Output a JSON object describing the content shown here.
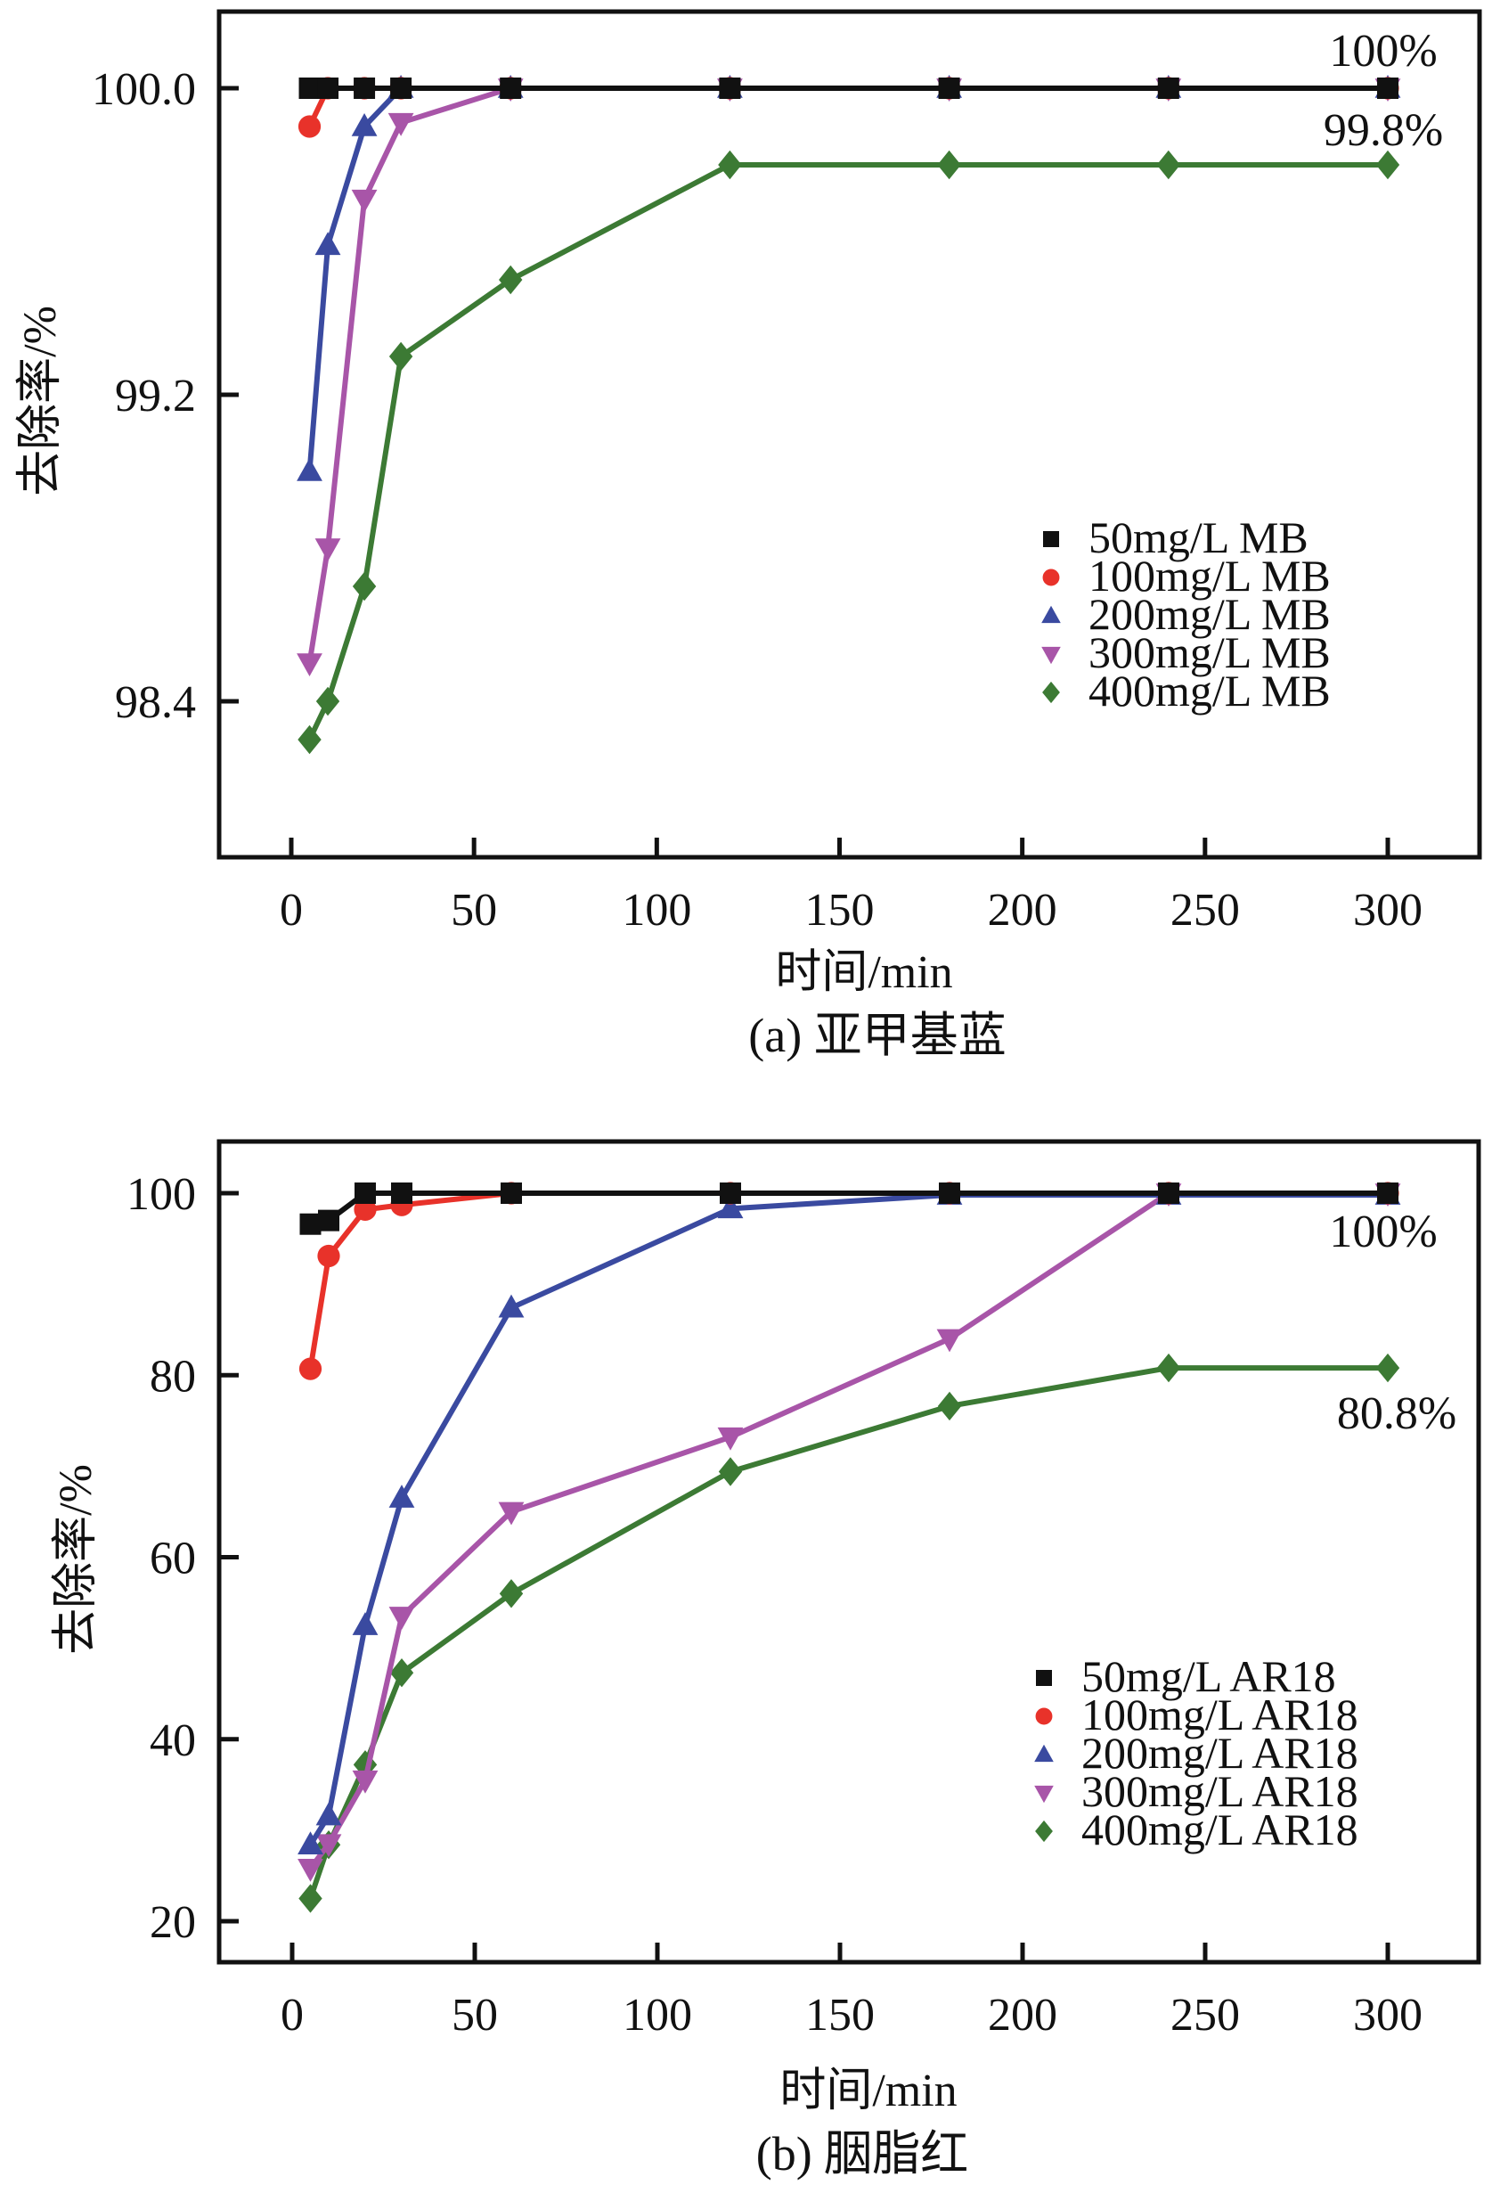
{
  "chart_data": [
    {
      "type": "line",
      "panel": "a",
      "caption": "(a) 亚甲基蓝",
      "title": "",
      "xlabel": "时间/min",
      "ylabel": "去除率/%",
      "xlim": [
        -19,
        326
      ],
      "ylim": [
        98.02,
        100.23
      ],
      "xticks": [
        0,
        50,
        100,
        150,
        200,
        250,
        300
      ],
      "xtick_labels": [
        "0",
        "50",
        "100",
        "150",
        "200",
        "250",
        "300"
      ],
      "yticks": [
        98.4,
        99.2,
        100.0
      ],
      "ytick_labels": [
        "98.4",
        "99.2",
        "100.0"
      ],
      "grid": false,
      "legend_position": "bottom-right",
      "x": [
        5,
        10,
        20,
        30,
        60,
        120,
        180,
        240,
        300
      ],
      "series": [
        {
          "name": "50mg/L MB",
          "color": "#111111",
          "marker": "square",
          "values": [
            100.0,
            100.0,
            100.0,
            100.0,
            100.0,
            100.0,
            100.0,
            100.0,
            100.0
          ]
        },
        {
          "name": "100mg/L MB",
          "color": "#e8322a",
          "marker": "circle",
          "values": [
            99.9,
            100.0,
            100.0,
            100.0,
            100.0,
            100.0,
            100.0,
            100.0,
            100.0
          ]
        },
        {
          "name": "200mg/L MB",
          "color": "#3a4aa0",
          "marker": "triangle-up",
          "values": [
            99.0,
            99.59,
            99.9,
            100.0,
            100.0,
            100.0,
            100.0,
            100.0,
            100.0
          ]
        },
        {
          "name": "300mg/L MB",
          "color": "#a855a8",
          "marker": "triangle-down",
          "values": [
            98.5,
            98.8,
            99.71,
            99.91,
            100.0,
            100.0,
            100.0,
            100.0,
            100.0
          ]
        },
        {
          "name": "400mg/L MB",
          "color": "#3c7a34",
          "marker": "diamond",
          "values": [
            98.3,
            98.4,
            98.7,
            99.3,
            99.5,
            99.8,
            99.8,
            99.8,
            99.8
          ]
        }
      ],
      "annotations": [
        {
          "text": "100%",
          "x": 300,
          "y": 100.0,
          "position": "above"
        },
        {
          "text": "99.8%",
          "x": 300,
          "y": 99.8,
          "position": "above"
        }
      ]
    },
    {
      "type": "line",
      "panel": "b",
      "caption": "(b) 胭脂红",
      "title": "",
      "xlabel": "时间/min",
      "ylabel": "去除率/%",
      "xlim": [
        -19,
        325
      ],
      "ylim": [
        15.5,
        105.7
      ],
      "xticks": [
        0,
        50,
        100,
        150,
        200,
        250,
        300
      ],
      "xtick_labels": [
        "0",
        "50",
        "100",
        "150",
        "200",
        "250",
        "300"
      ],
      "yticks": [
        20,
        40,
        60,
        80,
        100
      ],
      "ytick_labels": [
        "20",
        "40",
        "60",
        "80",
        "100"
      ],
      "grid": false,
      "legend_position": "bottom-right",
      "x": [
        5,
        10,
        20,
        30,
        60,
        120,
        180,
        240,
        300
      ],
      "series": [
        {
          "name": "50mg/L AR18",
          "color": "#111111",
          "marker": "square",
          "values": [
            96.6,
            97.0,
            100.0,
            100.0,
            100.0,
            100.0,
            100.0,
            100.0,
            100.0
          ]
        },
        {
          "name": "100mg/L AR18",
          "color": "#e8322a",
          "marker": "circle",
          "values": [
            80.7,
            93.1,
            98.2,
            98.7,
            100.0,
            100.0,
            100.0,
            100.0,
            100.0
          ]
        },
        {
          "name": "200mg/L AR18",
          "color": "#3a4aa0",
          "marker": "triangle-up",
          "values": [
            28.4,
            31.6,
            52.5,
            66.5,
            87.4,
            98.3,
            99.8,
            99.8,
            99.8
          ]
        },
        {
          "name": "300mg/L AR18",
          "color": "#a855a8",
          "marker": "triangle-down",
          "values": [
            25.8,
            28.5,
            35.5,
            53.5,
            65.0,
            73.2,
            84.0,
            100.0,
            100.0
          ]
        },
        {
          "name": "400mg/L AR18",
          "color": "#3c7a34",
          "marker": "diamond",
          "values": [
            22.5,
            28.4,
            37.2,
            47.3,
            56.0,
            69.4,
            76.6,
            80.8,
            80.8
          ]
        }
      ],
      "annotations": [
        {
          "text": "100%",
          "x": 300,
          "y": 100.0,
          "position": "below"
        },
        {
          "text": "80.8%",
          "x": 300,
          "y": 80.8,
          "position": "below"
        }
      ]
    }
  ]
}
